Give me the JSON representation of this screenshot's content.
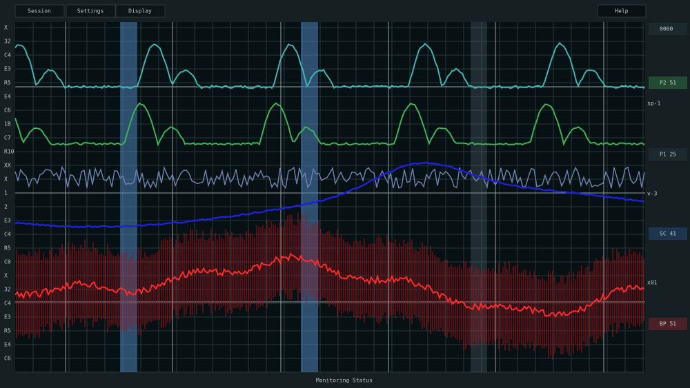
{
  "menu": [
    "Session",
    "Settings",
    "Display"
  ],
  "help": "Help",
  "left_labels": [
    "X",
    "32",
    "C4",
    "E3",
    "R5",
    "E4",
    "C6",
    "1B",
    "C7",
    "R10",
    "XX",
    "X",
    "1",
    "2",
    "E3",
    "C4",
    "R5",
    "C0",
    "X",
    "32",
    "C4",
    "E3",
    "R5",
    "E4",
    "C6"
  ],
  "right_labels": [
    "0000",
    "P2 51",
    "sp-1",
    "P1 25",
    "v-3",
    "SC 41",
    "x01",
    "BP 51"
  ],
  "status": "Monitoring Status"
}
